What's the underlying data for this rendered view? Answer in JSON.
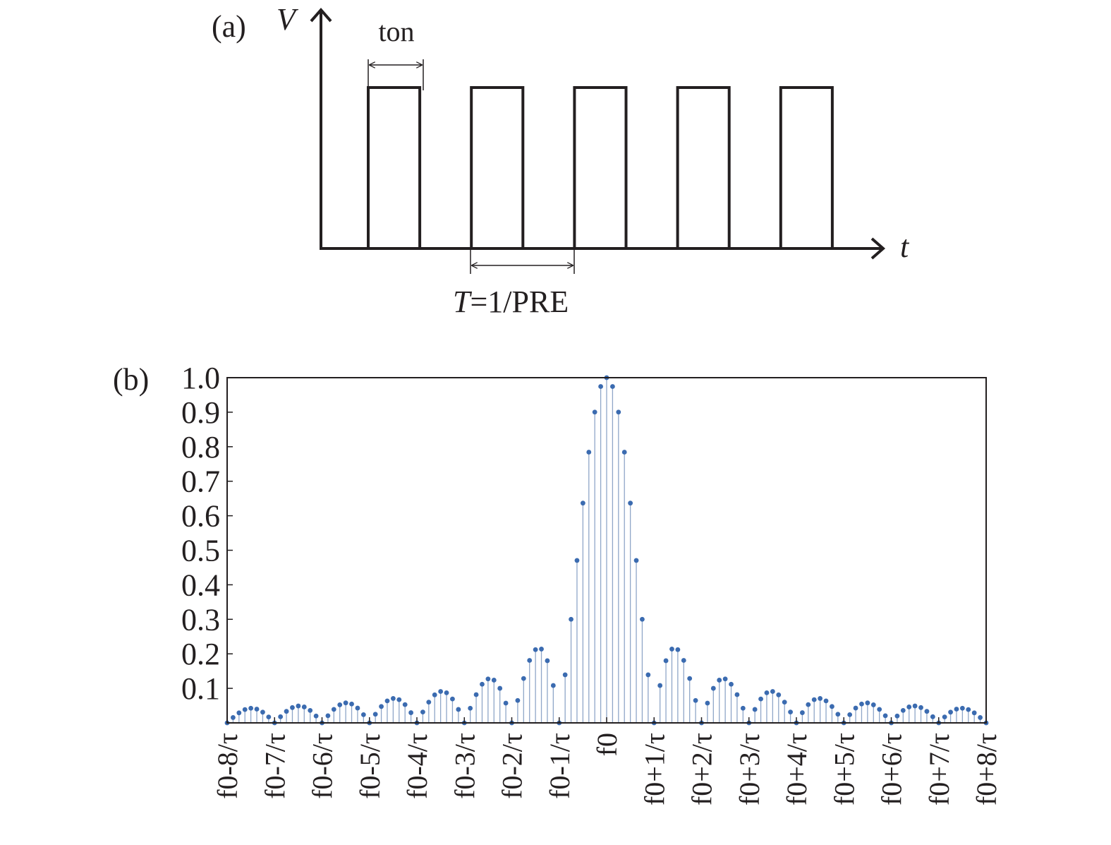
{
  "panel_a": {
    "label": "(a)",
    "y_axis_label": "V",
    "x_axis_label": "t",
    "pulse_width_label": "ton",
    "period_label_italic": "T",
    "period_label_rest": "=1/PRE"
  },
  "panel_b": {
    "label": "(b)"
  },
  "colors": {
    "stem": "#8fa6c8",
    "marker": "#3b6bb0",
    "ink": "#231f20"
  },
  "chart_data": [
    {
      "type": "line",
      "panel": "a",
      "description_source": "pulse train",
      "xlabel": "t",
      "ylabel": "V",
      "pulse_count": 5,
      "duty_fraction": 0.5,
      "pulse_level": 1.0
    },
    {
      "type": "scatter",
      "panel": "b",
      "subtype": "stem",
      "xlabel": "",
      "ylabel": "",
      "x_range": [
        -8,
        8
      ],
      "ylim": [
        0,
        1.0
      ],
      "y_ticks": [
        "0.1",
        "0.2",
        "0.3",
        "0.4",
        "0.5",
        "0.6",
        "0.7",
        "0.8",
        "0.9",
        "1.0"
      ],
      "x_ticks": [
        {
          "value": -8,
          "label": "f0-8/τ"
        },
        {
          "value": -7,
          "label": "f0-7/τ"
        },
        {
          "value": -6,
          "label": "f0-6/τ"
        },
        {
          "value": -5,
          "label": "f0-5/τ"
        },
        {
          "value": -4,
          "label": "f0-4/τ"
        },
        {
          "value": -3,
          "label": "f0-3/τ"
        },
        {
          "value": -2,
          "label": "f0-2/τ"
        },
        {
          "value": -1,
          "label": "f0-1/τ"
        },
        {
          "value": 0,
          "label": "f0"
        },
        {
          "value": 1,
          "label": "f0+1/τ"
        },
        {
          "value": 2,
          "label": "f0+2/τ"
        },
        {
          "value": 3,
          "label": "f0+3/τ"
        },
        {
          "value": 4,
          "label": "f0+4/τ"
        },
        {
          "value": 5,
          "label": "f0+5/τ"
        },
        {
          "value": 6,
          "label": "f0+6/τ"
        },
        {
          "value": 7,
          "label": "f0+7/τ"
        },
        {
          "value": 8,
          "label": "f0+8/τ"
        }
      ],
      "sample_spacing": 0.125,
      "y_function": "abs_sinc"
    }
  ]
}
